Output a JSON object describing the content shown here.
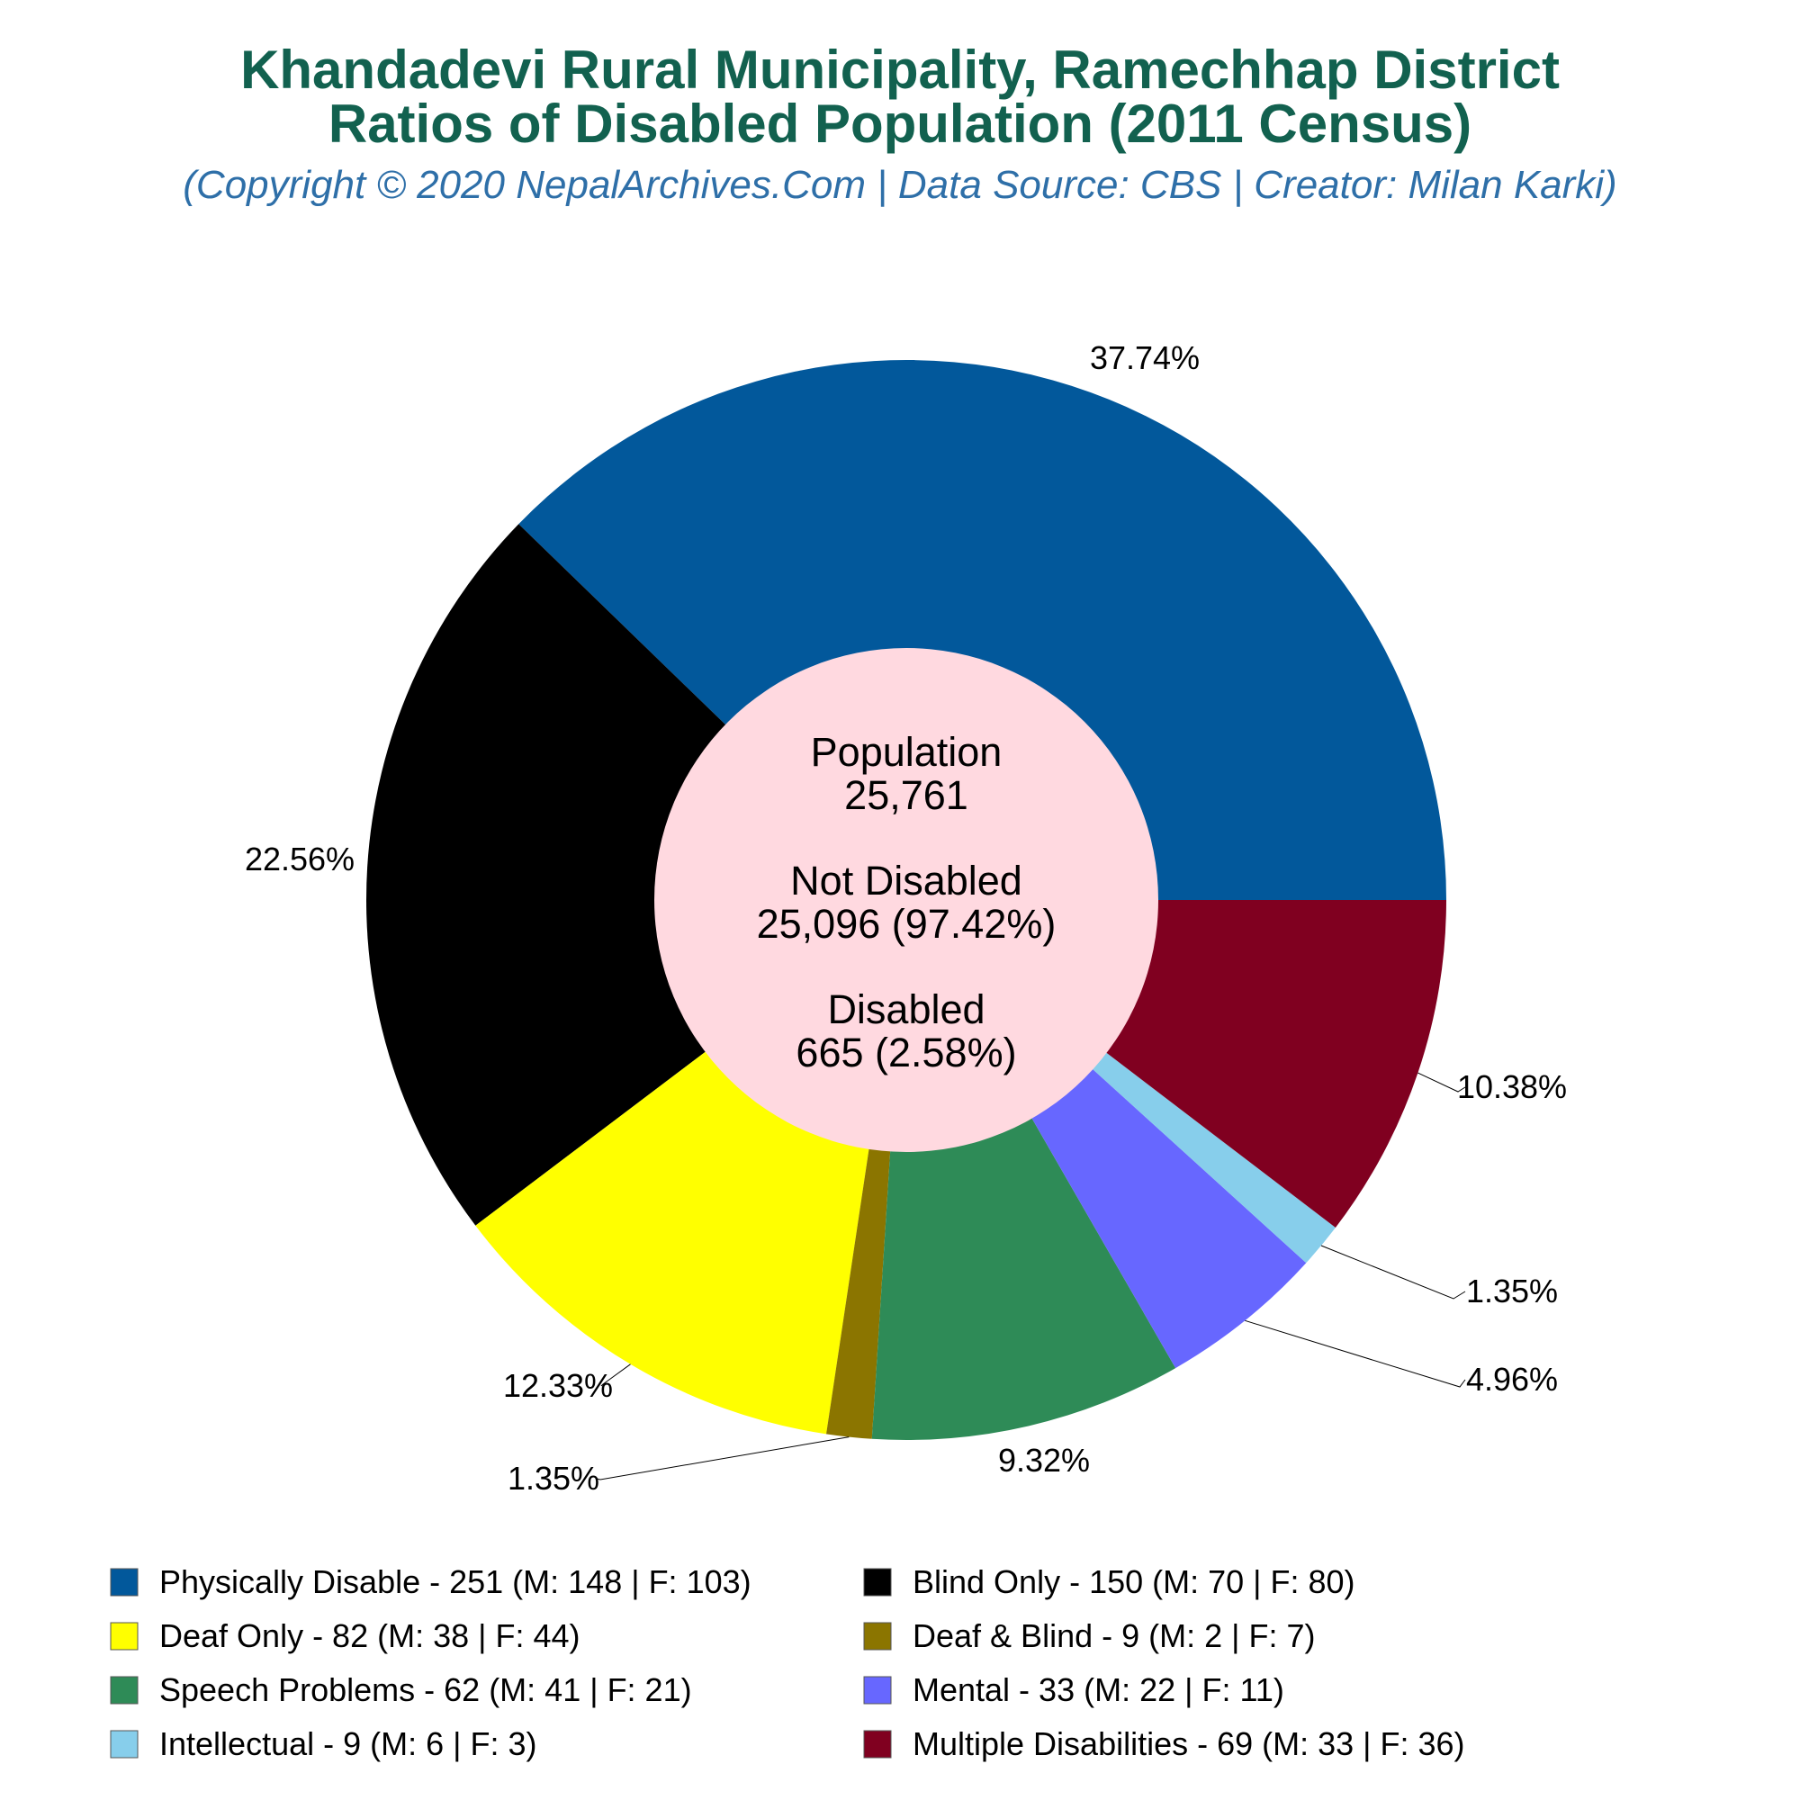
{
  "chart_data": {
    "type": "pie",
    "title_line1": "Khandadevi Rural Municipality, Ramechhap District",
    "title_line2": "Ratios of Disabled Population (2011 Census)",
    "subtitle": "(Copyright © 2020 NepalArchives.Com | Data Source: CBS | Creator: Milan Karki)",
    "center": {
      "population_label": "Population",
      "population_value": "25,761",
      "not_disabled_label": "Not Disabled",
      "not_disabled_value": "25,096 (97.42%)",
      "disabled_label": "Disabled",
      "disabled_value": "665 (2.58%)"
    },
    "series": [
      {
        "legend": "Physically Disable - 251 (M: 148 | F: 103)",
        "value": 251,
        "pct_label": "37.74%",
        "color": "#02589b"
      },
      {
        "legend": "Blind Only - 150 (M: 70 | F: 80)",
        "value": 150,
        "pct_label": "22.56%",
        "color": "#000000"
      },
      {
        "legend": "Deaf Only - 82 (M: 38 | F: 44)",
        "value": 82,
        "pct_label": "12.33%",
        "color": "#ffff00"
      },
      {
        "legend": "Deaf & Blind - 9 (M: 2 | F: 7)",
        "value": 9,
        "pct_label": "1.35%",
        "color": "#8b7500"
      },
      {
        "legend": "Speech Problems - 62 (M: 41 | F: 21)",
        "value": 62,
        "pct_label": "9.32%",
        "color": "#2e8b57"
      },
      {
        "legend": "Mental - 33 (M: 22 | F: 11)",
        "value": 33,
        "pct_label": "4.96%",
        "color": "#6767ff"
      },
      {
        "legend": "Intellectual - 9 (M: 6 | F: 3)",
        "value": 9,
        "pct_label": "1.35%",
        "color": "#87ceeb"
      },
      {
        "legend": "Multiple Disabilities - 69 (M: 33 | F: 36)",
        "value": 69,
        "pct_label": "10.38%",
        "color": "#800020"
      }
    ],
    "center_hole_color": "#ffd9e0",
    "legend_placement": "bottom"
  }
}
